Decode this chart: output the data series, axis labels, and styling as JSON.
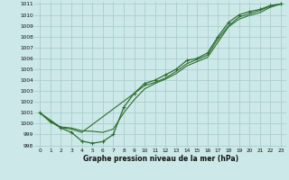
{
  "title": "Graphe pression niveau de la mer (hPa)",
  "bg_color": "#cce8e8",
  "grid_color": "#aacece",
  "line_color": "#2d6e2d",
  "xlim": [
    -0.5,
    23.5
  ],
  "ylim": [
    997.8,
    1011.2
  ],
  "xticks": [
    0,
    1,
    2,
    3,
    4,
    5,
    6,
    7,
    8,
    9,
    10,
    11,
    12,
    13,
    14,
    15,
    16,
    17,
    18,
    19,
    20,
    21,
    22,
    23
  ],
  "yticks": [
    998,
    999,
    1000,
    1001,
    1002,
    1003,
    1004,
    1005,
    1006,
    1007,
    1008,
    1009,
    1010,
    1011
  ],
  "series": [
    {
      "x": [
        0,
        1,
        2,
        3,
        4,
        5,
        6,
        7,
        8,
        9,
        10,
        11,
        12,
        13,
        14,
        15,
        16,
        17,
        18,
        19,
        20,
        21,
        22,
        23
      ],
      "y": [
        1001.0,
        1000.2,
        999.6,
        999.2,
        998.4,
        998.2,
        998.35,
        999.0,
        1001.5,
        1002.8,
        1003.7,
        1004.0,
        1004.5,
        1005.0,
        1005.8,
        1006.0,
        1006.5,
        1008.0,
        1009.3,
        1010.0,
        1010.3,
        1010.5,
        1010.85,
        1011.0
      ],
      "marker": true,
      "lw": 0.9
    },
    {
      "x": [
        0,
        2,
        3,
        4,
        10,
        11,
        12,
        13,
        14,
        15,
        16,
        17,
        18,
        19,
        20,
        21,
        22,
        23
      ],
      "y": [
        1001.0,
        999.65,
        999.5,
        999.2,
        1003.5,
        1003.8,
        1004.2,
        1004.8,
        1005.5,
        1005.9,
        1006.3,
        1007.8,
        1009.0,
        1009.8,
        1010.1,
        1010.4,
        1010.8,
        1011.0
      ],
      "marker": false,
      "lw": 0.8
    },
    {
      "x": [
        0,
        1,
        2,
        3,
        4,
        5,
        6,
        7,
        8,
        9,
        10,
        11,
        12,
        13,
        14,
        15,
        16,
        17,
        18,
        19,
        20,
        21,
        22,
        23
      ],
      "y": [
        1001.0,
        1000.15,
        999.7,
        999.6,
        999.35,
        999.3,
        999.2,
        999.5,
        1001.0,
        1002.2,
        1003.2,
        1003.7,
        1004.1,
        1004.6,
        1005.3,
        1005.7,
        1006.1,
        1007.5,
        1008.9,
        1009.6,
        1009.95,
        1010.2,
        1010.7,
        1011.0
      ],
      "marker": false,
      "lw": 0.8
    }
  ]
}
